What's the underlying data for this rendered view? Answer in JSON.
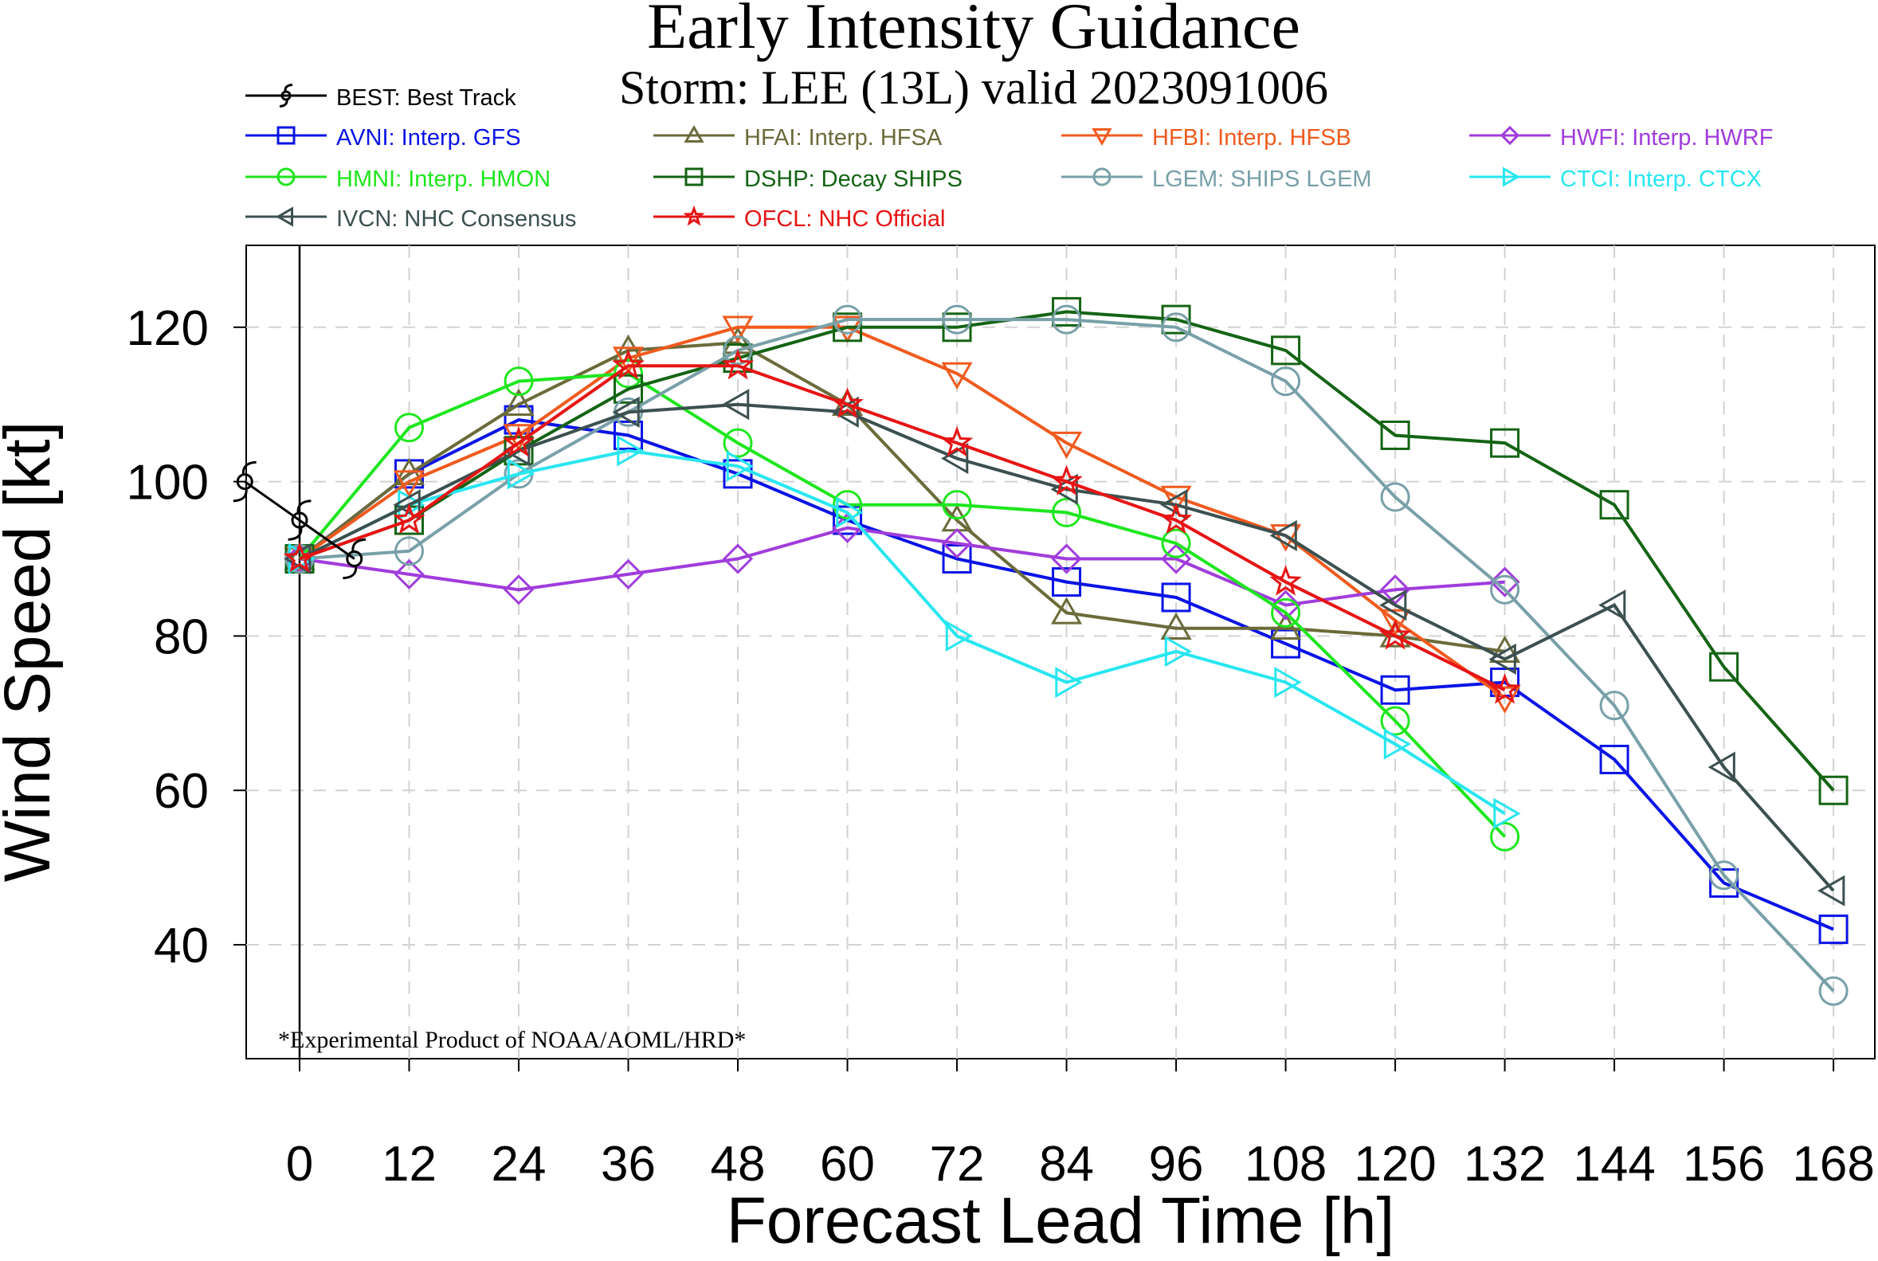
{
  "chart_data": {
    "type": "line",
    "title": "Early Intensity Guidance",
    "subtitle": "Storm: LEE (13L) valid 2023091006",
    "xlabel": "Forecast Lead Time [h]",
    "ylabel": "Wind Speed [kt]",
    "footnote": "*Experimental Product of NOAA/AOML/HRD*",
    "xlim": [
      -10,
      173
    ],
    "ylim": [
      25,
      130
    ],
    "x_ticks": [
      0,
      12,
      24,
      36,
      48,
      60,
      72,
      84,
      96,
      108,
      120,
      132,
      144,
      156,
      168
    ],
    "y_ticks": [
      40,
      60,
      80,
      100,
      120
    ],
    "grid": true,
    "legend_position": "top",
    "best_track": {
      "label": "BEST: Best Track",
      "color": "#000000",
      "points": [
        [
          -6,
          100
        ],
        [
          0,
          95
        ],
        [
          6,
          90
        ]
      ]
    },
    "series": [
      {
        "label": "AVNI: Interp. GFS",
        "color": "#0a14e6",
        "marker": "square",
        "points": [
          [
            0,
            90
          ],
          [
            12,
            101
          ],
          [
            24,
            108
          ],
          [
            36,
            106
          ],
          [
            48,
            101
          ],
          [
            60,
            95
          ],
          [
            72,
            90
          ],
          [
            84,
            87
          ],
          [
            96,
            85
          ],
          [
            108,
            79
          ],
          [
            120,
            73
          ],
          [
            132,
            74
          ],
          [
            144,
            64
          ],
          [
            156,
            48
          ],
          [
            168,
            42
          ]
        ]
      },
      {
        "label": "HFAI: Interp. HFSA",
        "color": "#6b6b3a",
        "marker": "triangle",
        "points": [
          [
            0,
            90
          ],
          [
            12,
            101
          ],
          [
            24,
            110
          ],
          [
            36,
            117
          ],
          [
            48,
            118
          ],
          [
            60,
            110
          ],
          [
            72,
            95
          ],
          [
            84,
            83
          ],
          [
            96,
            81
          ],
          [
            108,
            81
          ],
          [
            120,
            80
          ],
          [
            132,
            78
          ]
        ]
      },
      {
        "label": "HFBI: Interp. HFSB",
        "color": "#f05a1e",
        "marker": "triangle-down",
        "points": [
          [
            0,
            90
          ],
          [
            12,
            100
          ],
          [
            24,
            106
          ],
          [
            36,
            116
          ],
          [
            48,
            120
          ],
          [
            60,
            120
          ],
          [
            72,
            114
          ],
          [
            84,
            105
          ],
          [
            96,
            98
          ],
          [
            108,
            93
          ],
          [
            120,
            82
          ],
          [
            132,
            72
          ]
        ]
      },
      {
        "label": "HWFI: Interp. HWRF",
        "color": "#a03cdc",
        "marker": "diamond",
        "points": [
          [
            0,
            90
          ],
          [
            12,
            88
          ],
          [
            24,
            86
          ],
          [
            36,
            88
          ],
          [
            48,
            90
          ],
          [
            60,
            94
          ],
          [
            72,
            92
          ],
          [
            84,
            90
          ],
          [
            96,
            90
          ],
          [
            108,
            84
          ],
          [
            120,
            86
          ],
          [
            132,
            87
          ]
        ]
      },
      {
        "label": "HMNI: Interp. HMON",
        "color": "#1ee61e",
        "marker": "circle",
        "points": [
          [
            0,
            90
          ],
          [
            12,
            107
          ],
          [
            24,
            113
          ],
          [
            36,
            114
          ],
          [
            48,
            105
          ],
          [
            60,
            97
          ],
          [
            72,
            97
          ],
          [
            84,
            96
          ],
          [
            96,
            92
          ],
          [
            108,
            83
          ],
          [
            120,
            69
          ],
          [
            132,
            54
          ]
        ]
      },
      {
        "label": "DSHP: Decay SHIPS",
        "color": "#146414",
        "marker": "square",
        "points": [
          [
            0,
            90
          ],
          [
            12,
            95
          ],
          [
            24,
            104
          ],
          [
            36,
            112
          ],
          [
            48,
            116
          ],
          [
            60,
            120
          ],
          [
            72,
            120
          ],
          [
            84,
            122
          ],
          [
            96,
            121
          ],
          [
            108,
            117
          ],
          [
            120,
            106
          ],
          [
            132,
            105
          ],
          [
            144,
            97
          ],
          [
            156,
            76
          ],
          [
            168,
            60
          ]
        ]
      },
      {
        "label": "LGEM: SHIPS LGEM",
        "color": "#78a0a8",
        "marker": "circle",
        "points": [
          [
            0,
            90
          ],
          [
            12,
            91
          ],
          [
            24,
            101
          ],
          [
            36,
            109
          ],
          [
            48,
            117
          ],
          [
            60,
            121
          ],
          [
            72,
            121
          ],
          [
            84,
            121
          ],
          [
            96,
            120
          ],
          [
            108,
            113
          ],
          [
            120,
            98
          ],
          [
            132,
            86
          ],
          [
            144,
            71
          ],
          [
            156,
            49
          ],
          [
            168,
            34
          ]
        ]
      },
      {
        "label": "CTCI: Interp. CTCX",
        "color": "#28e6f0",
        "marker": "triangle-right",
        "points": [
          [
            0,
            90
          ],
          [
            12,
            97
          ],
          [
            24,
            101
          ],
          [
            36,
            104
          ],
          [
            48,
            102
          ],
          [
            60,
            96
          ],
          [
            72,
            80
          ],
          [
            84,
            74
          ],
          [
            96,
            78
          ],
          [
            108,
            74
          ],
          [
            120,
            66
          ],
          [
            132,
            57
          ]
        ]
      },
      {
        "label": "IVCN: NHC Consensus",
        "color": "#3c5050",
        "marker": "triangle-left",
        "points": [
          [
            0,
            90
          ],
          [
            12,
            97
          ],
          [
            24,
            104
          ],
          [
            36,
            109
          ],
          [
            48,
            110
          ],
          [
            60,
            109
          ],
          [
            72,
            103
          ],
          [
            84,
            99
          ],
          [
            96,
            97
          ],
          [
            108,
            93
          ],
          [
            120,
            84
          ],
          [
            132,
            77
          ],
          [
            144,
            84
          ],
          [
            156,
            63
          ],
          [
            168,
            47
          ]
        ]
      },
      {
        "label": "OFCL: NHC Official",
        "color": "#e61414",
        "marker": "star",
        "points": [
          [
            0,
            90
          ],
          [
            12,
            95
          ],
          [
            24,
            105
          ],
          [
            36,
            115
          ],
          [
            48,
            115
          ],
          [
            60,
            110
          ],
          [
            72,
            105
          ],
          [
            84,
            100
          ],
          [
            96,
            95
          ],
          [
            108,
            87
          ],
          [
            120,
            80
          ],
          [
            132,
            73
          ]
        ]
      }
    ]
  }
}
